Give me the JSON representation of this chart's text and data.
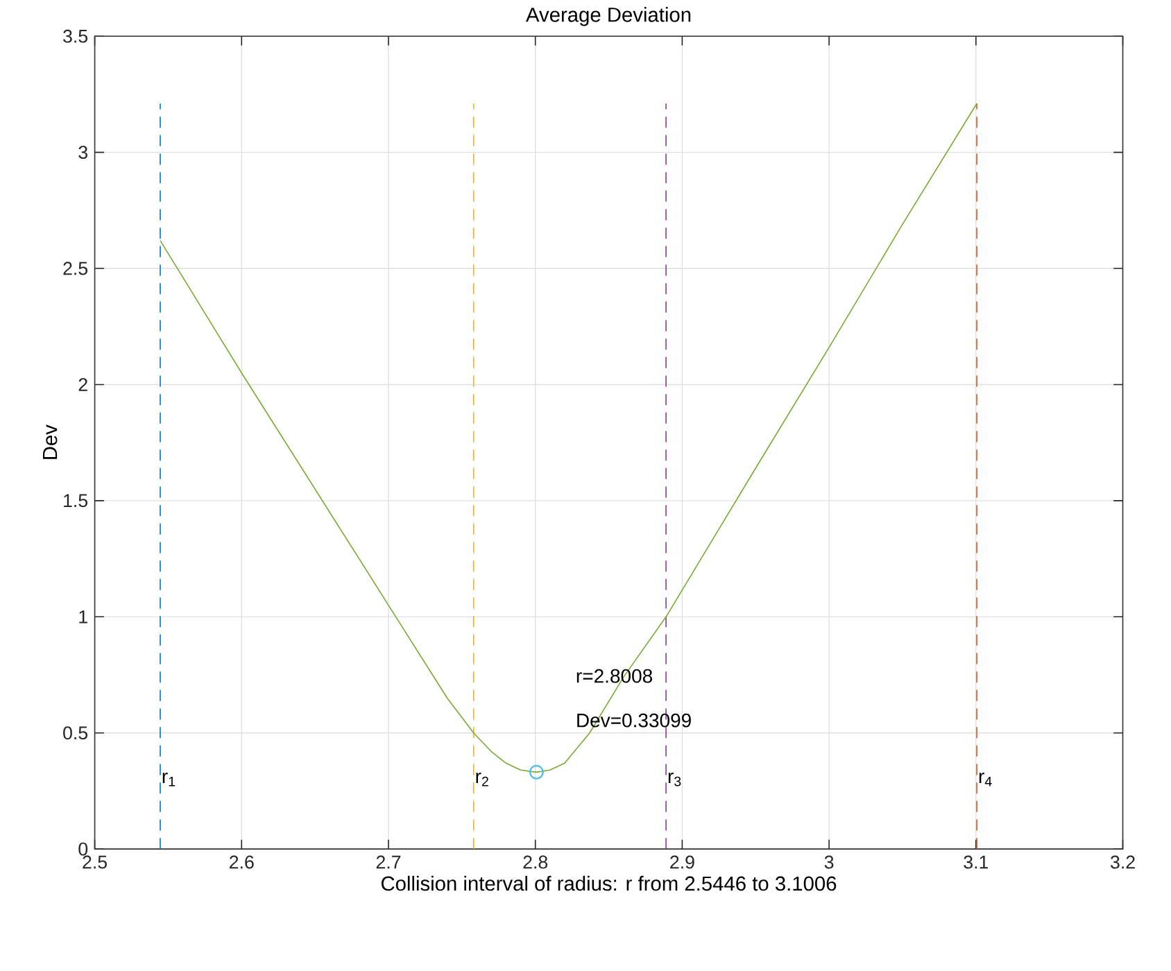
{
  "chart_data": {
    "type": "line",
    "title": "Average Deviation",
    "xlabel": "Collision interval of radius:  r  from  2.5446 to 3.1006",
    "ylabel": "Dev",
    "xlim": [
      2.5,
      3.2
    ],
    "xticks": [
      2.5,
      2.6,
      2.7,
      2.8,
      2.9,
      3,
      3.1,
      3.2
    ],
    "ylim": [
      0,
      3.5
    ],
    "yticks": [
      0,
      0.5,
      1,
      1.5,
      2,
      2.5,
      3,
      3.5
    ],
    "grid": true,
    "series": [
      {
        "type": "line",
        "color": "#0072bd",
        "line_style": "dashed",
        "x": [
          2.5446,
          2.5446
        ],
        "values": [
          0,
          3.21
        ]
      },
      {
        "type": "line",
        "color": "#edb120",
        "line_style": "dashed",
        "x": [
          2.758,
          2.758
        ],
        "values": [
          0,
          3.21
        ]
      },
      {
        "type": "line",
        "color": "#7e2f8e",
        "line_style": "dashed",
        "x": [
          2.889,
          2.889
        ],
        "values": [
          0,
          3.21
        ]
      },
      {
        "type": "line",
        "color": "#d95319",
        "line_style": "dashed",
        "x": [
          3.1006,
          3.1006
        ],
        "values": [
          0,
          3.21
        ]
      },
      {
        "color": "#77ac30",
        "line_style": "solid",
        "x": [
          2.5446,
          2.6,
          2.65,
          2.7,
          2.74,
          2.758,
          2.77,
          2.78,
          2.79,
          2.8008,
          2.81,
          2.82,
          2.837,
          2.86,
          2.889,
          2.95,
          3.0,
          3.05,
          3.1006
        ],
        "values": [
          2.62,
          2.05,
          1.55,
          1.05,
          0.65,
          0.5,
          0.42,
          0.37,
          0.34,
          0.33099,
          0.34,
          0.37,
          0.5,
          0.74,
          1.0,
          1.64,
          2.16,
          2.69,
          3.21
        ]
      },
      {
        "type": "scatter",
        "color": "#4dbeee",
        "marker": "circle",
        "x": [
          2.8008
        ],
        "values": [
          0.33099
        ]
      }
    ],
    "annotations": [
      {
        "text": "r$_{1}$",
        "x": 2.5446,
        "y": 0.3
      },
      {
        "text": "r$_{2}$",
        "x": 2.758,
        "y": 0.3
      },
      {
        "text": "r$_{3}$",
        "x": 2.889,
        "y": 0.3
      },
      {
        "text": "r$_{4}$",
        "x": 3.1006,
        "y": 0.3
      },
      "r=2.8008",
      "Dev=0.33099"
    ]
  }
}
